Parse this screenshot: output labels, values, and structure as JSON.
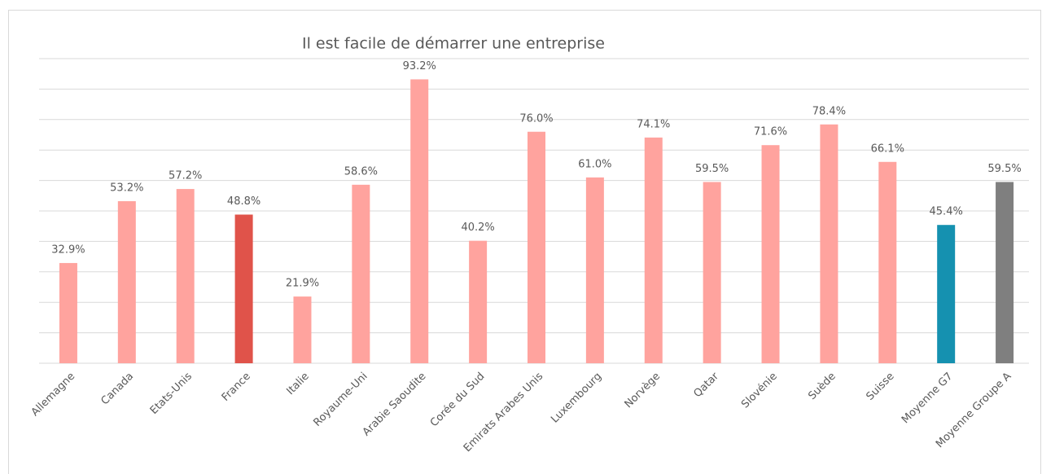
{
  "chart_data": {
    "type": "bar",
    "title": "Il est facile de démarrer une entreprise",
    "categories": [
      "Allemagne",
      "Canada",
      "Etats-Unis",
      "France",
      "Italie",
      "Royaume-Uni",
      "Arabie Saoudite",
      "Corée du Sud",
      "Emirats Arabes Unis",
      "Luxembourg",
      "Norvège",
      "Qatar",
      "Slovénie",
      "Suède",
      "Suisse",
      "Moyenne G7",
      "Moyenne Groupe A"
    ],
    "values": [
      32.9,
      53.2,
      57.2,
      48.8,
      21.9,
      58.6,
      93.2,
      40.2,
      76.0,
      61.0,
      74.1,
      59.5,
      71.6,
      78.4,
      66.1,
      45.4,
      59.5
    ],
    "value_labels": [
      "32.9%",
      "53.2%",
      "57.2%",
      "48.8%",
      "21.9%",
      "58.6%",
      "93.2%",
      "40.2%",
      "76.0%",
      "61.0%",
      "74.1%",
      "59.5%",
      "71.6%",
      "78.4%",
      "66.1%",
      "45.4%",
      "59.5%"
    ],
    "colors": [
      "#ffa39e",
      "#ffa39e",
      "#ffa39e",
      "#e0534a",
      "#ffa39e",
      "#ffa39e",
      "#ffa39e",
      "#ffa39e",
      "#ffa39e",
      "#ffa39e",
      "#ffa39e",
      "#ffa39e",
      "#ffa39e",
      "#ffa39e",
      "#ffa39e",
      "#1591b0",
      "#7f7f7f"
    ],
    "ylim": [
      0,
      100
    ],
    "yticks": [
      0,
      10,
      20,
      30,
      40,
      50,
      60,
      70,
      80,
      90,
      100
    ],
    "grid": true
  }
}
